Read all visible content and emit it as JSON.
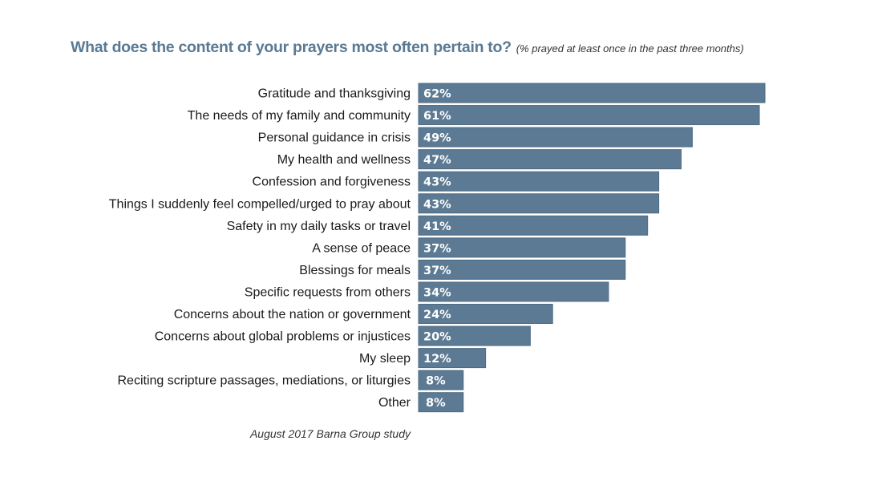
{
  "chart_data": {
    "type": "bar",
    "orientation": "horizontal",
    "title": "What does the content of your prayers most often pertain to?",
    "subtitle": "(% prayed at least once in the past three months)",
    "xlabel": "",
    "ylabel": "",
    "xlim": [
      0,
      62
    ],
    "grid": false,
    "legend": "none",
    "bar_color": "#5c7a93",
    "categories": [
      "Gratitude and thanksgiving",
      "The needs of my family and community",
      "Personal guidance in crisis",
      "My health and wellness",
      "Confession and forgiveness",
      "Things I suddenly feel compelled/urged to pray about",
      "Safety in my daily tasks or travel",
      "A sense of peace",
      "Blessings for meals",
      "Specific requests from others",
      "Concerns about the nation or government",
      "Concerns about global problems or injustices",
      "My sleep",
      "Reciting scripture passages, mediations, or liturgies",
      "Other"
    ],
    "values": [
      62,
      61,
      49,
      47,
      43,
      43,
      41,
      37,
      37,
      34,
      24,
      20,
      12,
      8,
      8
    ],
    "value_labels": [
      "62%",
      "61%",
      "49%",
      "47%",
      "43%",
      "43%",
      "41%",
      "37%",
      "37%",
      "34%",
      "24%",
      "20%",
      "12%",
      "8%",
      "8%"
    ],
    "source": "August 2017 Barna Group study"
  }
}
